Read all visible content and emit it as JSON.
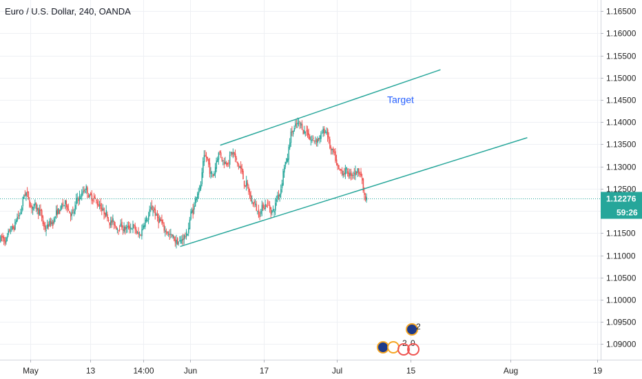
{
  "chart_data": {
    "type": "candlestick",
    "title": "Euro / U.S. Dollar, 240, OANDA",
    "symbol": "EURUSD",
    "timeframe": "240",
    "source": "OANDA",
    "ylim": [
      1.0865,
      1.1675
    ],
    "y_ticks": [
      "1.16500",
      "1.16000",
      "1.15500",
      "1.15000",
      "1.14500",
      "1.14000",
      "1.13500",
      "1.13000",
      "1.12500",
      "1.12000",
      "1.11500",
      "1.11000",
      "1.10500",
      "1.10000",
      "1.09500",
      "1.09000"
    ],
    "x_ticks": [
      {
        "label": "May",
        "t": 5
      },
      {
        "label": "13",
        "t": 14
      },
      {
        "label": "14:00",
        "t": 22
      },
      {
        "label": "Jun",
        "t": 29
      },
      {
        "label": "17",
        "t": 40
      },
      {
        "label": "Jul",
        "t": 51
      },
      {
        "label": "15",
        "t": 62
      },
      {
        "label": "Aug",
        "t": 77
      },
      {
        "label": "19",
        "t": 90
      }
    ],
    "xlim": [
      0.5,
      90.5
    ],
    "closes": [
      1.1135,
      1.116,
      1.119,
      1.124,
      1.121,
      1.12,
      1.116,
      1.1175,
      1.12,
      1.1215,
      1.1195,
      1.123,
      1.125,
      1.123,
      1.1215,
      1.1195,
      1.1175,
      1.1165,
      1.116,
      1.1165,
      1.1145,
      1.118,
      1.1205,
      1.118,
      1.1155,
      1.114,
      1.113,
      1.1145,
      1.12,
      1.125,
      1.132,
      1.128,
      1.133,
      1.131,
      1.133,
      1.13,
      1.126,
      1.122,
      1.1195,
      1.1215,
      1.12,
      1.124,
      1.131,
      1.138,
      1.1395,
      1.138,
      1.136,
      1.1365,
      1.138,
      1.133,
      1.129,
      1.129,
      1.1285,
      1.129,
      1.1225
    ],
    "current_price": "1.12276",
    "countdown": "59:26",
    "trendlines": [
      {
        "from": {
          "t": 27.5,
          "p": 1.112
        },
        "to": {
          "t": 79.5,
          "p": 1.1365
        }
      },
      {
        "from": {
          "t": 33.5,
          "p": 1.1348
        },
        "to": {
          "t": 66.5,
          "p": 1.1518
        }
      }
    ],
    "annotations": [
      {
        "text": "Target",
        "t": 58.5,
        "p": 1.1443
      }
    ],
    "events": [
      "2",
      "2",
      "0"
    ],
    "colors": {
      "up": "#26a69a",
      "down": "#ef5350",
      "trendline": "#26a69a",
      "annotation": "#2962ff",
      "price_label": "#26a69a",
      "grid": "#eef0f4",
      "axis_text": "#222222",
      "event_orange": "#f5a623",
      "event_blue": "#1e3a8a"
    },
    "grid": true
  }
}
